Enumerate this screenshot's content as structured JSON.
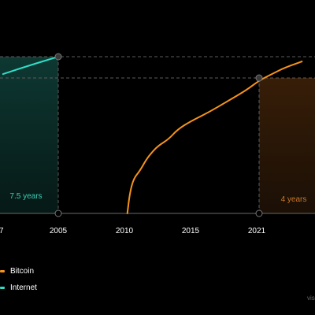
{
  "chart_data": {
    "type": "line",
    "x_axis": {
      "ticks": [
        "2005",
        "2010",
        "2015",
        "2021"
      ]
    },
    "left_tick_fragment": "7",
    "series": [
      {
        "name": "Bitcoin",
        "color": "#f7931a",
        "points": [
          [
            2010.5,
            0.0
          ],
          [
            2010.7,
            0.13
          ],
          [
            2011.0,
            0.22
          ],
          [
            2011.5,
            0.27
          ],
          [
            2012.0,
            0.34
          ],
          [
            2012.5,
            0.39
          ],
          [
            2013.0,
            0.43
          ],
          [
            2013.8,
            0.47
          ],
          [
            2014.5,
            0.53
          ],
          [
            2015.5,
            0.58
          ],
          [
            2017.0,
            0.64
          ],
          [
            2018.5,
            0.71
          ],
          [
            2020.0,
            0.78
          ],
          [
            2021.0,
            0.84
          ],
          [
            2022.0,
            0.88
          ],
          [
            2023.0,
            0.92
          ],
          [
            2024.4,
            0.96
          ]
        ]
      },
      {
        "name": "Internet",
        "color": "#2fe0c8",
        "points": [
          [
            2000.6,
            0.88
          ],
          [
            2002.5,
            0.93
          ],
          [
            2005.0,
            0.99
          ]
        ]
      }
    ],
    "annotations": [
      {
        "label": "7.5 years",
        "range": [
          2000.6,
          2005
        ],
        "color": "#3ccfb6"
      },
      {
        "label": "4 years",
        "range": [
          2021,
          2024.4
        ],
        "color": "#c9792b"
      }
    ]
  },
  "legend": {
    "items": [
      {
        "label": "Bitcoin",
        "color": "#f7931a"
      },
      {
        "label": "Internet",
        "color": "#2fe0c8"
      }
    ]
  },
  "watermark": "vis"
}
